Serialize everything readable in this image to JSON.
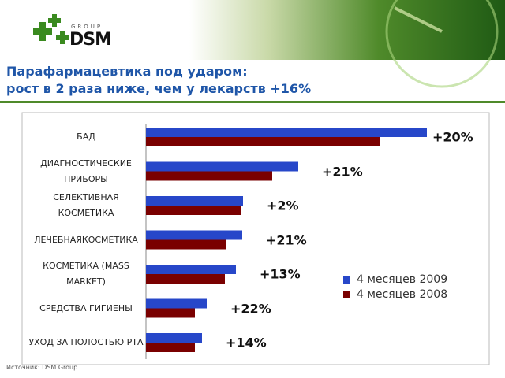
{
  "header": {
    "logo": "DSM",
    "logo_sub": "GROUP"
  },
  "chart_data": {
    "type": "bar",
    "orientation": "horizontal",
    "title": "Парафармацевтика под ударом:\nрост в 2 раза ниже, чем у лекарств +16%",
    "categories": [
      "БАД",
      "ДИАГНОСТИЧЕСКИЕ ПРИБОРЫ",
      "СЕЛЕКТИВНАЯ КОСМЕТИКА",
      "ЛЕЧЕБНАЯКОСМЕТИКА",
      "КОСМЕТИКА (MASS MARKET)",
      "СРЕДСТВА ГИГИЕНЫ",
      "УХОД ЗА ПОЛОСТЬЮ РТА"
    ],
    "series": [
      {
        "name": "4 месяцев 2009",
        "color": "#2747c9",
        "values": [
          356,
          193,
          123,
          122,
          114,
          77,
          71
        ]
      },
      {
        "name": "4 месяцев 2008",
        "color": "#7a0000",
        "values": [
          296,
          160,
          120,
          101,
          100,
          62,
          62
        ]
      }
    ],
    "annotations": [
      "+20%",
      "+21%",
      "+2%",
      "+21%",
      "+13%",
      "+22%",
      "+14%"
    ],
    "xlim": [
      0,
      380
    ],
    "source": "Источник: DSM Group"
  }
}
